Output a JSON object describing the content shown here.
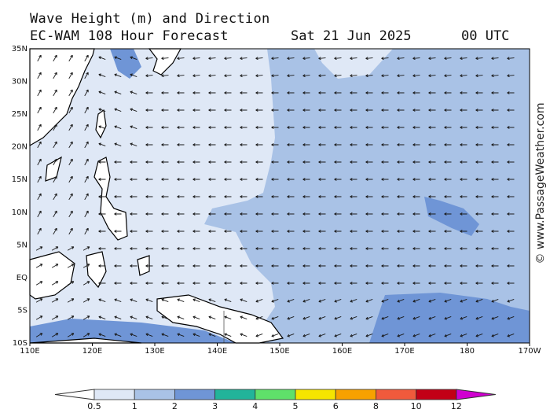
{
  "header": {
    "line1": "Wave Height (m) and Direction",
    "model": "EC-WAM 108 Hour Forecast",
    "date": "Sat 21 Jun 2025",
    "time": "00 UTC"
  },
  "credit": "© www.PassageWeather.com",
  "map": {
    "lon_range": [
      110,
      190
    ],
    "lat_range": [
      -10,
      35
    ],
    "lon_ticks": [
      "110E",
      "120E",
      "130E",
      "140E",
      "150E",
      "160E",
      "170E",
      "180",
      "170W"
    ],
    "lat_ticks": [
      "35N",
      "30N",
      "25N",
      "20N",
      "15N",
      "10N",
      "5N",
      "EQ",
      "5S",
      "10S"
    ],
    "arrow_direction": "predominantly westward (easterly swell) across the North Pacific trade belt; northeastward off the South China Sea",
    "colors": {
      "land": "#ffffff",
      "coast": "#000000",
      "arrow": "#1a1a1a"
    }
  },
  "colorbar": {
    "labels": [
      "0.5",
      "1",
      "2",
      "3",
      "4",
      "5",
      "6",
      "8",
      "10",
      "12"
    ],
    "colors": [
      "#dfe8f6",
      "#a9c2e6",
      "#6f95d6",
      "#22b49a",
      "#5fe06a",
      "#f5e500",
      "#f7a100",
      "#f05a3c",
      "#c20016",
      "#d000d0"
    ],
    "under_color": "#ffffff"
  }
}
